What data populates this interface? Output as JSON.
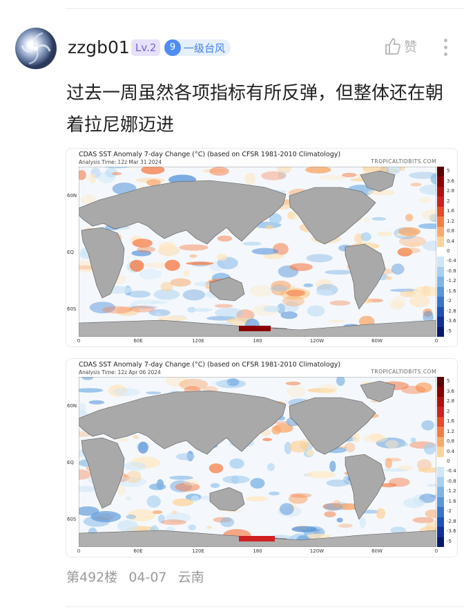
{
  "user": {
    "name": "zzgb01",
    "level": "Lv.2",
    "rank_number": "9",
    "rank_title": "一级台风"
  },
  "actions": {
    "like_label": "赞",
    "like_icon": "thumbs-up-icon",
    "more_icon": "more-vertical-icon"
  },
  "post": {
    "text": "过去一周虽然各项指标有所反弹，但整体还在朝着拉尼娜迈进"
  },
  "maps": [
    {
      "title": "CDAS SST Anomaly 7-day Change (°C) (based on CFSR 1981-2010 Climatology)",
      "time": "Analysis Time: 12z Mar 31 2024",
      "brand": "TROPICALTIDBITS.COM"
    },
    {
      "title": "CDAS SST Anomaly 7-day Change (°C) (based on CFSR 1981-2010 Climatology)",
      "time": "Analysis Time: 12z Apr 06 2024",
      "brand": "TROPICALTIDBITS.COM"
    }
  ],
  "axes": {
    "lat_labels": [
      "60N",
      "EQ",
      "60S"
    ],
    "lon_labels": [
      "0",
      "60E",
      "120E",
      "180",
      "120W",
      "60W",
      "0"
    ]
  },
  "colorbar": {
    "labels": [
      "5",
      "3.6",
      "2.8",
      "2",
      "1.6",
      "1.2",
      "0.8",
      "0.4",
      "0",
      "-0.4",
      "-0.8",
      "-1.2",
      "-1.6",
      "-2",
      "-2.8",
      "-3.6",
      "-5"
    ],
    "colors": [
      "#5c0000",
      "#8b0000",
      "#b01010",
      "#d02020",
      "#e84a2a",
      "#f57b45",
      "#f9a96c",
      "#fcd49b",
      "#ffffff",
      "#cfe6f7",
      "#a8d0f0",
      "#7fb5e6",
      "#5a96da",
      "#3a75cc",
      "#1f52b8",
      "#10309a",
      "#081a70"
    ]
  },
  "footer": {
    "floor": "第492楼",
    "date": "04-07",
    "location": "云南"
  }
}
